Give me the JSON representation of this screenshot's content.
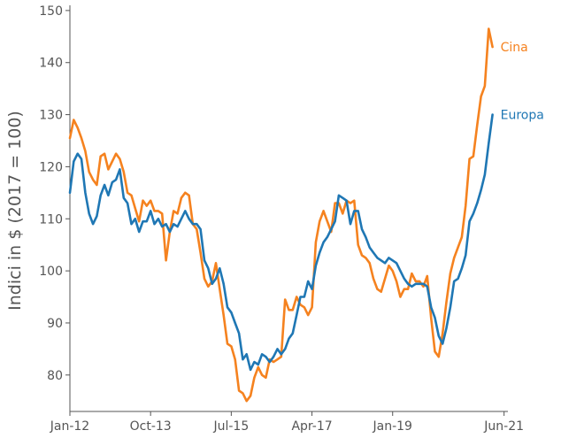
{
  "chart_data": {
    "type": "line",
    "title": "",
    "xlabel": "",
    "ylabel": "Indici in $ (2017 = 100)",
    "ylim": [
      73,
      151
    ],
    "xlim": [
      0,
      114
    ],
    "yticks": [
      80,
      90,
      100,
      110,
      120,
      130,
      140,
      150
    ],
    "xticks": [
      {
        "label": "Jan-12",
        "index": 0
      },
      {
        "label": "Oct-13",
        "index": 21
      },
      {
        "label": "Jul-15",
        "index": 42
      },
      {
        "label": "Apr-17",
        "index": 63
      },
      {
        "label": "Jan-19",
        "index": 84
      },
      {
        "label": "Jun-21",
        "index": 113
      }
    ],
    "grid": false,
    "series": [
      {
        "name": "Cina",
        "color": "#f5821f",
        "values": [
          125.5,
          129,
          127.5,
          125.5,
          123,
          119,
          117.5,
          116.5,
          122,
          122.5,
          119.5,
          121,
          122.5,
          121.5,
          119,
          115,
          114.5,
          112,
          109.5,
          113.5,
          112.5,
          113.5,
          111.5,
          111.5,
          111,
          102,
          107.5,
          111.5,
          111,
          114,
          115,
          114.5,
          109,
          108,
          103.5,
          98.5,
          97,
          98,
          101.5,
          96.5,
          91.5,
          86,
          85.5,
          83,
          77,
          76.5,
          75,
          76,
          79.5,
          81.5,
          80,
          79.5,
          83,
          82.5,
          83,
          83.5,
          94.5,
          92.5,
          92.5,
          95,
          93.5,
          93,
          91.5,
          93,
          105.5,
          109.5,
          111.5,
          109.5,
          107.5,
          113,
          113,
          111,
          113.5,
          113,
          113.5,
          105,
          103,
          102.5,
          101.5,
          98.5,
          96.5,
          96,
          98.5,
          101,
          100,
          98,
          95,
          96.5,
          96.5,
          99.5,
          98,
          98,
          97,
          99,
          91,
          84.5,
          83.5,
          88,
          94,
          99.5,
          102.5,
          104.5,
          106.5,
          112.5,
          121.5,
          122,
          128,
          133.5,
          135.5,
          146.5,
          143
        ]
      },
      {
        "name": "Europa",
        "color": "#1f77b4",
        "values": [
          115,
          121,
          122.5,
          121.5,
          115,
          111,
          109,
          110.5,
          114.5,
          116.5,
          114.5,
          117,
          117.5,
          119.5,
          114,
          113,
          109,
          110,
          107.5,
          109.5,
          109.5,
          111.5,
          109,
          110,
          108.5,
          109,
          107.5,
          109,
          108.5,
          110,
          111.5,
          110,
          109,
          109,
          108,
          102,
          100.5,
          97.5,
          98.5,
          100.5,
          97.5,
          93,
          92,
          90,
          88,
          83,
          84,
          81,
          82.5,
          82,
          84,
          83.5,
          82.5,
          83.5,
          85,
          84,
          85,
          87,
          88,
          91.5,
          95,
          95,
          98,
          96.5,
          101,
          103.5,
          105.5,
          106.5,
          108,
          109.5,
          114.5,
          114,
          113.5,
          109,
          111.5,
          111.5,
          108,
          106.5,
          104.5,
          103.5,
          102.5,
          102,
          101.5,
          102.5,
          102,
          101.5,
          100,
          98.5,
          97.5,
          97,
          97.5,
          97.5,
          97.5,
          97,
          93,
          91,
          87.5,
          86,
          89,
          93,
          98,
          98.5,
          100.5,
          103,
          109.5,
          111,
          113,
          115.5,
          118.5,
          124.5,
          130
        ]
      }
    ]
  }
}
